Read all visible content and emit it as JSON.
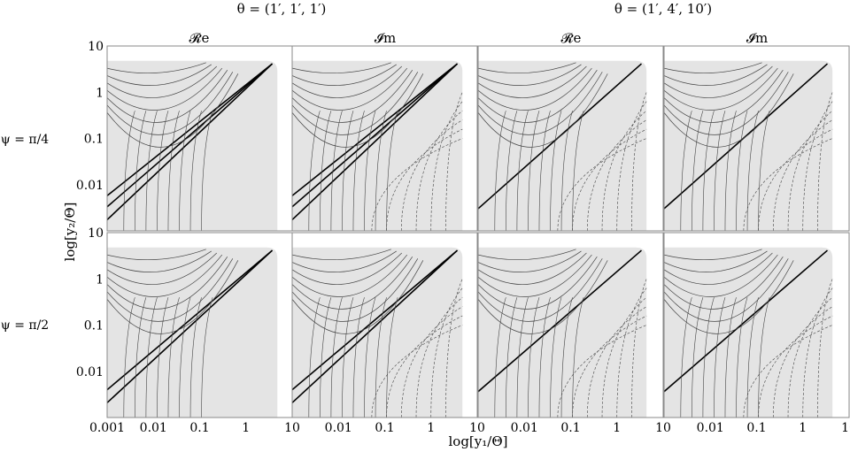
{
  "chart_data": {
    "type": "contour",
    "group_titles": [
      "θ = (1′, 1′, 1′)",
      "θ = (1′, 4′, 10′)"
    ],
    "column_titles": [
      "𝓡e",
      "𝓘m",
      "𝓡e",
      "𝓘m"
    ],
    "row_labels": [
      "ψ = π/4",
      "ψ = π/2"
    ],
    "xlabel": "log[y₁/Θ]",
    "ylabel": "log[y₂/Θ]",
    "x_ticks": [
      "0.001",
      "0.01",
      "0.1",
      "1",
      "10"
    ],
    "x_ticks_other": [
      "0.01",
      "0.1",
      "1",
      "10"
    ],
    "y_ticks": [
      "10",
      "1",
      "0.1",
      "0.01"
    ],
    "x_scale": "log",
    "y_scale": "log",
    "xlim": [
      0.001,
      10
    ],
    "ylim": [
      0.001,
      10
    ],
    "grid": false,
    "legend": "none",
    "colors": {
      "fill": "#e4e4e4",
      "line": "#444444",
      "bold": "#000000",
      "frame": "#8a8a8a"
    }
  }
}
